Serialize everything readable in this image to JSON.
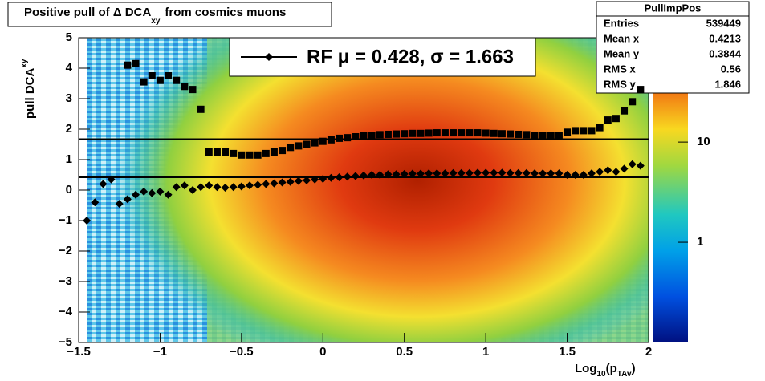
{
  "chart_data": {
    "type": "profile",
    "title": [
      "Positive pull of Δ DCA",
      "xy",
      "from cosmics muons"
    ],
    "y_label": [
      "pull DCA",
      "xy"
    ],
    "x_label": [
      "Log",
      "10",
      "(p",
      "TAv",
      ")"
    ],
    "xlim": [
      -1.5,
      2
    ],
    "ylim": [
      -5,
      5
    ],
    "xticks": [
      {
        "value": -1.5,
        "label": "−1.5"
      },
      {
        "value": -1,
        "label": "−1"
      },
      {
        "value": -0.5,
        "label": "−0.5"
      },
      0,
      0.5,
      1,
      1.5,
      2
    ],
    "yticks": [
      {
        "value": -5,
        "label": "−5"
      },
      {
        "value": -4,
        "label": "−4"
      },
      {
        "value": -3,
        "label": "−3"
      },
      {
        "value": -2,
        "label": "−2"
      },
      {
        "value": -1,
        "label": "−1"
      },
      0,
      1,
      2,
      3,
      4,
      5
    ],
    "zlim": [
      0.1,
      110
    ],
    "zticks": [
      1,
      10
    ],
    "zscale": "log",
    "x": [
      -1.45,
      -1.4,
      -1.35,
      -1.3,
      -1.25,
      -1.2,
      -1.15,
      -1.1,
      -1.05,
      -1,
      -0.95,
      -0.9,
      -0.85,
      -0.8,
      -0.75,
      -0.7,
      -0.65,
      -0.6,
      -0.55,
      -0.5,
      -0.45,
      -0.4,
      -0.35,
      -0.3,
      -0.25,
      -0.2,
      -0.15,
      -0.1,
      -0.05,
      0,
      0.05,
      0.1,
      0.15,
      0.2,
      0.25,
      0.3,
      0.35,
      0.4,
      0.45,
      0.5,
      0.55,
      0.6,
      0.65,
      0.7,
      0.75,
      0.8,
      0.85,
      0.9,
      0.95,
      1,
      1.05,
      1.1,
      1.15,
      1.2,
      1.25,
      1.3,
      1.35,
      1.4,
      1.45,
      1.5,
      1.55,
      1.6,
      1.65,
      1.7,
      1.75,
      1.8,
      1.85,
      1.9,
      1.95
    ],
    "series": [
      {
        "marker": "diamond",
        "color": "#000000",
        "values": [
          -1.0,
          -0.4,
          0.2,
          0.35,
          -0.45,
          -0.3,
          -0.15,
          -0.05,
          -0.1,
          -0.05,
          -0.15,
          0.1,
          0.15,
          0,
          0.1,
          0.15,
          0.1,
          0.08,
          0.1,
          0.12,
          0.15,
          0.17,
          0.2,
          0.22,
          0.25,
          0.27,
          0.3,
          0.32,
          0.35,
          0.37,
          0.4,
          0.42,
          0.44,
          0.46,
          0.48,
          0.5,
          0.5,
          0.52,
          0.52,
          0.53,
          0.54,
          0.54,
          0.55,
          0.55,
          0.55,
          0.56,
          0.56,
          0.56,
          0.57,
          0.57,
          0.57,
          0.57,
          0.56,
          0.56,
          0.56,
          0.55,
          0.55,
          0.55,
          0.55,
          0.5,
          0.5,
          0.5,
          0.55,
          0.6,
          0.65,
          0.6,
          0.7,
          0.85,
          0.8
        ]
      },
      {
        "marker": "square",
        "color": "#000000",
        "values": [
          null,
          null,
          null,
          null,
          null,
          4.1,
          4.15,
          3.55,
          3.75,
          3.6,
          3.75,
          3.6,
          3.4,
          3.3,
          2.65,
          1.25,
          1.25,
          1.25,
          1.2,
          1.15,
          1.15,
          1.15,
          1.2,
          1.25,
          1.3,
          1.4,
          1.45,
          1.5,
          1.55,
          1.6,
          1.65,
          1.7,
          1.72,
          1.75,
          1.78,
          1.8,
          1.82,
          1.83,
          1.84,
          1.85,
          1.86,
          1.86,
          1.87,
          1.88,
          1.88,
          1.88,
          1.88,
          1.88,
          1.88,
          1.87,
          1.86,
          1.85,
          1.84,
          1.83,
          1.82,
          1.8,
          1.78,
          1.78,
          1.78,
          1.9,
          1.95,
          1.95,
          1.95,
          2.05,
          2.3,
          2.35,
          2.6,
          2.9,
          3.3
        ]
      }
    ],
    "fit_lines": [
      0.428,
      1.663
    ],
    "legend": "RF μ =  0.428, σ =   1.663",
    "stats": {
      "title": "PullImpPos",
      "rows": [
        [
          "Entries",
          "539449"
        ],
        [
          "Mean x",
          "0.4213"
        ],
        [
          "Mean y",
          "0.3844"
        ],
        [
          "RMS x",
          "0.56"
        ],
        [
          "RMS y",
          "1.846"
        ]
      ]
    }
  }
}
